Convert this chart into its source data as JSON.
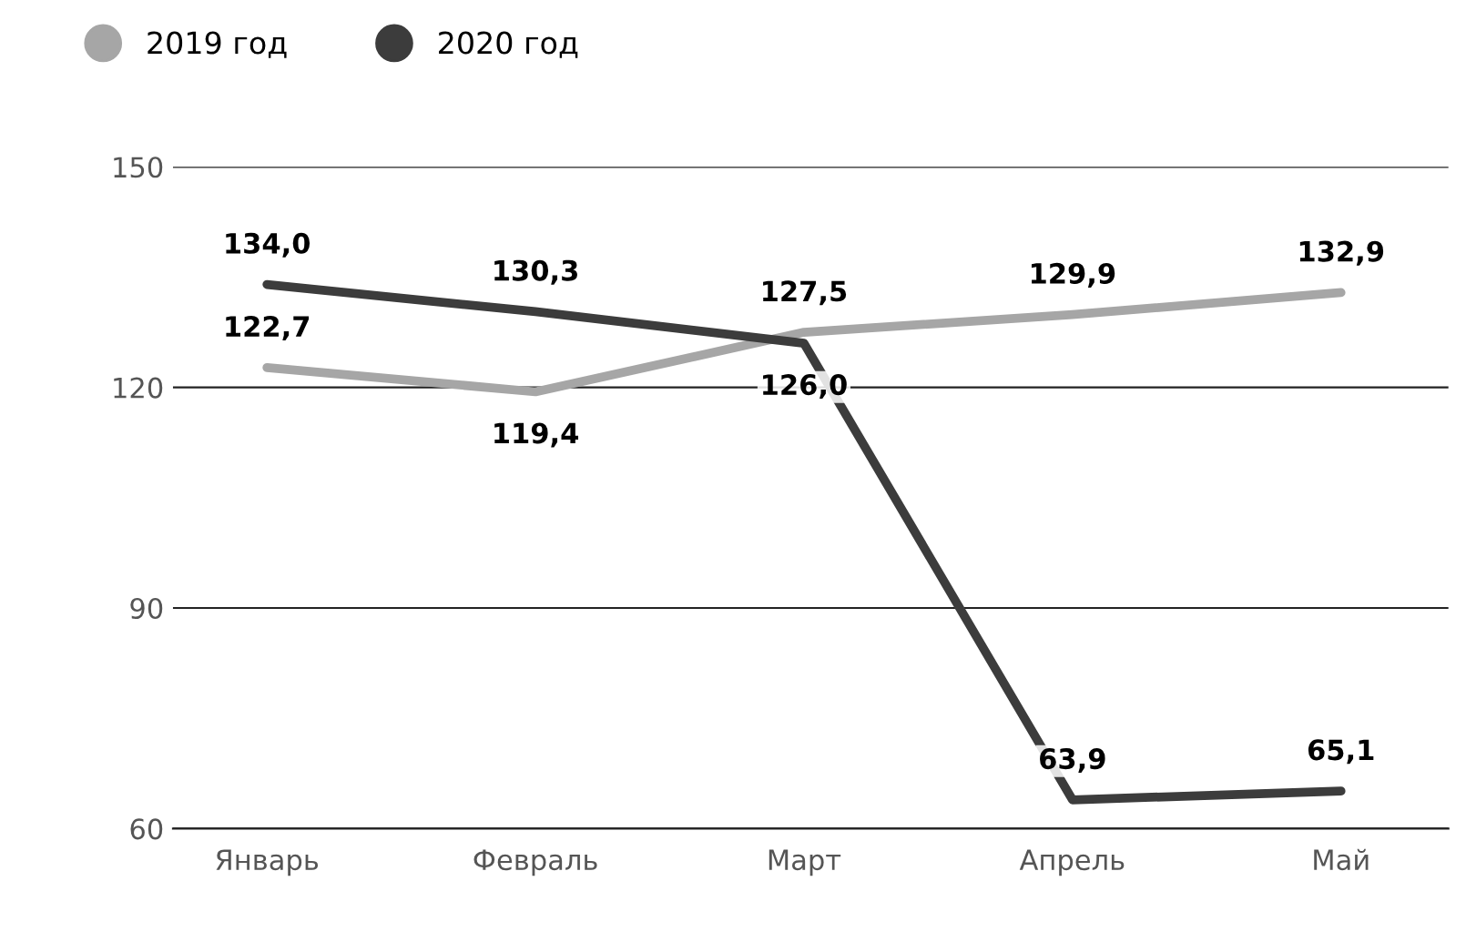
{
  "chart_data": {
    "type": "line",
    "categories": [
      "Январь",
      "Февраль",
      "Март",
      "Апрель",
      "Май"
    ],
    "series": [
      {
        "name": "2019 год",
        "color": "#a6a6a6",
        "values": [
          122.7,
          119.4,
          127.5,
          129.9,
          132.9
        ],
        "value_labels": [
          "122,7",
          "119,4",
          "127,5",
          "129,9",
          "132,9"
        ]
      },
      {
        "name": "2020 год",
        "color": "#3c3c3c",
        "values": [
          134.0,
          130.3,
          126.0,
          63.9,
          65.1
        ],
        "value_labels": [
          "134,0",
          "130,3",
          "126,0",
          "63,9",
          "65,1"
        ]
      }
    ],
    "ylim": [
      60,
      150
    ],
    "yticks": [
      60,
      90,
      120,
      150
    ],
    "grid": "y",
    "legend": "top left",
    "marker": "none",
    "line_style": "solid"
  }
}
